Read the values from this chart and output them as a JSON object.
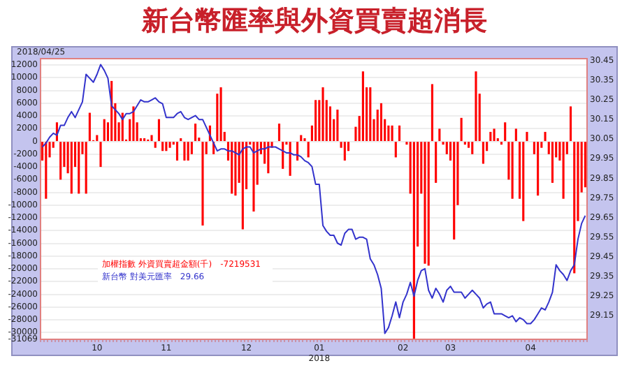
{
  "chart_data": {
    "type": "bar",
    "title": "新台幣匯率與外資買賣超消長",
    "categories": [
      null,
      null,
      null,
      null,
      null,
      null,
      null,
      null,
      null,
      null,
      null,
      null,
      null,
      null,
      null,
      "10",
      null,
      null,
      null,
      null,
      null,
      null,
      null,
      null,
      null,
      null,
      null,
      null,
      null,
      null,
      null,
      null,
      null,
      null,
      "11",
      null,
      null,
      null,
      null,
      null,
      null,
      null,
      null,
      null,
      null,
      null,
      null,
      null,
      null,
      null,
      null,
      null,
      null,
      null,
      null,
      null,
      "12",
      null,
      null,
      null,
      null,
      null,
      null,
      null,
      null,
      null,
      null,
      null,
      null,
      null,
      null,
      null,
      null,
      null,
      null,
      null,
      "01\n2018",
      null,
      null,
      null,
      null,
      null,
      null,
      null,
      null,
      null,
      null,
      null,
      null,
      null,
      null,
      null,
      null,
      null,
      null,
      null,
      null,
      null,
      null,
      "02",
      null,
      null,
      null,
      null,
      null,
      null,
      null,
      null,
      null,
      null,
      null,
      null,
      "03",
      null,
      null,
      null,
      null,
      null,
      null,
      null,
      null,
      null,
      null,
      null,
      null,
      null,
      null,
      null,
      null,
      null,
      null,
      null,
      null,
      null,
      "04",
      null,
      null,
      null,
      null,
      null,
      null,
      null,
      null,
      null,
      null,
      null,
      null,
      null,
      null,
      null
    ],
    "series": [
      {
        "name": "加權指數 外資買賣超金額(千)",
        "color": "#ff0000",
        "values": [
          -3000,
          -9000,
          -2500,
          -1000,
          3000,
          -6000,
          -4000,
          -5000,
          -8200,
          -4000,
          -8200,
          -2000,
          -8200,
          4500,
          200,
          1000,
          -4000,
          3500,
          3000,
          9500,
          6000,
          3000,
          4500,
          300,
          3500,
          5500,
          3000,
          500,
          500,
          300,
          1000,
          -1000,
          3500,
          -1500,
          -1500,
          -1000,
          -500,
          -3000,
          500,
          -3000,
          -3000,
          -2000,
          2800,
          600,
          -13200,
          -2000,
          2500,
          -2000,
          7500,
          8500,
          1500,
          -3000,
          -8200,
          -8500,
          -6500,
          -13800,
          -7500,
          -500,
          -11000,
          -6800,
          -2000,
          -3500,
          -5000,
          -1000,
          0,
          2800,
          -4300,
          -500,
          -5400,
          0,
          -3000,
          1000,
          500,
          -2500,
          2500,
          6500,
          6500,
          8500,
          6500,
          5500,
          3500,
          5000,
          -1000,
          -3000,
          -1500,
          0,
          2300,
          4000,
          11000,
          8500,
          8500,
          3500,
          5000,
          6000,
          3500,
          2500,
          2500,
          -2500,
          2500,
          0,
          -500,
          -8200,
          -31069,
          -16500,
          -8200,
          -19200,
          -19500,
          9000,
          -6500,
          2000,
          -500,
          -2000,
          -3000,
          -15400,
          -10000,
          3700,
          -500,
          -1000,
          -2000,
          11000,
          7500,
          -3500,
          -1500,
          1500,
          2000,
          500,
          -500,
          3000,
          -6000,
          -9000,
          2000,
          -9000,
          -12500,
          1500,
          0,
          -2000,
          -8500,
          -1000,
          1500,
          -2000,
          -6500,
          -2500,
          -3000,
          -9000,
          -2000,
          5500,
          -20700,
          -12500,
          -8000,
          -7200
        ]
      },
      {
        "name": "新台幣 對美元匯率",
        "type": "line",
        "axis": "y2",
        "color": "#3333cc",
        "values": [
          30.01,
          30.03,
          30.06,
          30.08,
          30.07,
          30.12,
          30.12,
          30.16,
          30.19,
          30.16,
          30.2,
          30.24,
          30.38,
          30.36,
          30.34,
          30.38,
          30.43,
          30.4,
          30.36,
          30.22,
          30.2,
          30.18,
          30.15,
          30.18,
          30.18,
          30.19,
          30.22,
          30.25,
          30.24,
          30.24,
          30.25,
          30.26,
          30.24,
          30.23,
          30.16,
          30.16,
          30.16,
          30.18,
          30.19,
          30.16,
          30.15,
          30.16,
          30.17,
          30.15,
          30.15,
          30.11,
          30.07,
          30.03,
          29.99,
          30.0,
          30.0,
          29.99,
          29.99,
          29.98,
          29.97,
          30.0,
          30.01,
          30.01,
          29.98,
          29.99,
          30.0,
          30.0,
          30.01,
          30.01,
          30.01,
          30.0,
          29.99,
          29.98,
          29.98,
          29.97,
          29.97,
          29.96,
          29.94,
          29.93,
          29.91,
          29.82,
          29.82,
          29.61,
          29.58,
          29.56,
          29.56,
          29.52,
          29.51,
          29.57,
          29.59,
          29.59,
          29.54,
          29.55,
          29.55,
          29.54,
          29.44,
          29.41,
          29.36,
          29.29,
          29.06,
          29.09,
          29.15,
          29.22,
          29.14,
          29.22,
          29.26,
          29.32,
          29.25,
          29.33,
          29.38,
          29.39,
          29.28,
          29.24,
          29.29,
          29.26,
          29.22,
          29.28,
          29.3,
          29.27,
          29.27,
          29.27,
          29.24,
          29.26,
          29.28,
          29.26,
          29.24,
          29.19,
          29.21,
          29.22,
          29.16,
          29.16,
          29.16,
          29.15,
          29.14,
          29.15,
          29.12,
          29.14,
          29.13,
          29.11,
          29.11,
          29.13,
          29.16,
          29.19,
          29.18,
          29.22,
          29.27,
          29.41,
          29.38,
          29.36,
          29.33,
          29.38,
          29.41,
          29.54,
          29.62,
          29.66
        ]
      }
    ],
    "ylim": [
      -31069,
      13000
    ],
    "yticks": [
      12000,
      10000,
      8000,
      6000,
      4000,
      2000,
      0,
      -2000,
      -4000,
      -6000,
      -8000,
      -10000,
      -12000,
      -14000,
      -16000,
      -18000,
      -20000,
      -22000,
      -24000,
      -26000,
      -28000,
      -30000,
      -31069
    ],
    "y2lim": [
      29.03,
      30.46
    ],
    "y2ticks": [
      30.45,
      30.35,
      30.25,
      30.15,
      30.05,
      29.95,
      29.85,
      29.75,
      29.65,
      29.55,
      29.45,
      29.35,
      29.25,
      29.15
    ],
    "grid": "y",
    "legend": "bottom left",
    "annotations": [
      "2018/04/25",
      "-7219531",
      "29.66"
    ]
  }
}
